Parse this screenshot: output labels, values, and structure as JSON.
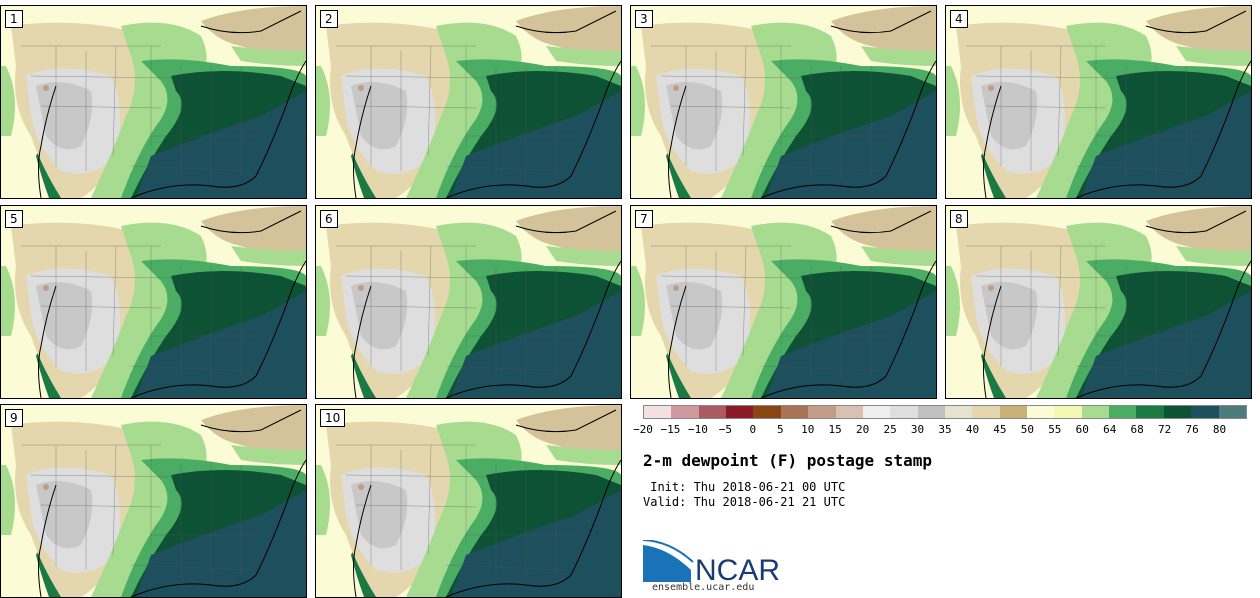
{
  "panels": [
    {
      "label": "1"
    },
    {
      "label": "2"
    },
    {
      "label": "3"
    },
    {
      "label": "4"
    },
    {
      "label": "5"
    },
    {
      "label": "6"
    },
    {
      "label": "7"
    },
    {
      "label": "8"
    },
    {
      "label": "9"
    },
    {
      "label": "10"
    }
  ],
  "colorbar": {
    "colors": [
      "#f3e0e0",
      "#cf9a9f",
      "#ab5a62",
      "#8b1a28",
      "#8b4513",
      "#a77455",
      "#c29c87",
      "#d8c0b3",
      "#efefef",
      "#dedede",
      "#c0c0c0",
      "#e6e2cf",
      "#e4d6ad",
      "#cab178",
      "#fbfbd6",
      "#f5f8b0",
      "#a7dc90",
      "#4bad63",
      "#1b7a43",
      "#0e5236",
      "#1e4f5c",
      "#4d7a7a"
    ],
    "ticks": [
      "−20",
      "−15",
      "−10",
      "−5",
      "0",
      "5",
      "10",
      "15",
      "20",
      "25",
      "30",
      "35",
      "40",
      "45",
      "50",
      "55",
      "60",
      "64",
      "68",
      "72",
      "76",
      "80"
    ]
  },
  "title": "2-m dewpoint (F) postage stamp",
  "init_line": " Init: Thu 2018-06-21 00 UTC",
  "valid_line": "Valid: Thu 2018-06-21 21 UTC",
  "logo": {
    "text": "NCAR",
    "icon": "ncar-logo"
  },
  "url": "ensemble.ucar.edu"
}
